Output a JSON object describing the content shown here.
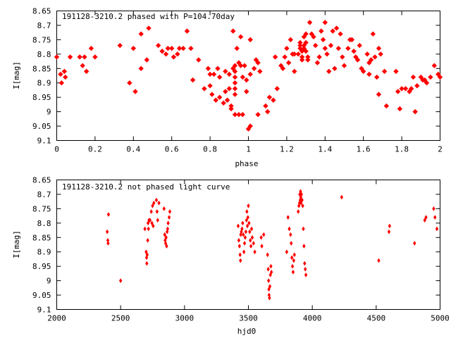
{
  "chart_data": [
    {
      "type": "scatter",
      "title": "191128-3210.2 phased with P=104.70day",
      "xlabel": "phase",
      "ylabel": "I[mag]",
      "xlim": [
        0,
        2
      ],
      "ylim": [
        9.1,
        8.65
      ],
      "y_inverted": true,
      "grid": false,
      "marker_color": "#ff0000",
      "xticks": [
        "0",
        "0.2",
        "0.4",
        "0.6",
        "0.8",
        "1",
        "1.2",
        "1.4",
        "1.6",
        "1.8",
        "2"
      ],
      "xtick_values": [
        0,
        0.2,
        0.4,
        0.6,
        0.8,
        1,
        1.2,
        1.4,
        1.6,
        1.8,
        2
      ],
      "yticks": [
        "8.65",
        "8.7",
        "8.75",
        "8.8",
        "8.85",
        "8.9",
        "8.95",
        "9",
        "9.05",
        "9.1"
      ],
      "ytick_values": [
        8.65,
        8.7,
        8.75,
        8.8,
        8.85,
        8.9,
        8.95,
        9.0,
        9.05,
        9.1
      ],
      "points": [
        [
          0.0,
          8.81
        ],
        [
          0.02,
          8.87
        ],
        [
          0.025,
          8.9
        ],
        [
          0.04,
          8.86
        ],
        [
          0.045,
          8.88
        ],
        [
          0.07,
          8.81
        ],
        [
          0.12,
          8.81
        ],
        [
          0.135,
          8.84
        ],
        [
          0.145,
          8.81
        ],
        [
          0.155,
          8.86
        ],
        [
          0.18,
          8.78
        ],
        [
          0.2,
          8.81
        ],
        [
          0.33,
          8.77
        ],
        [
          0.38,
          8.9
        ],
        [
          0.4,
          8.78
        ],
        [
          0.41,
          8.93
        ],
        [
          0.44,
          8.73
        ],
        [
          0.44,
          8.85
        ],
        [
          0.47,
          8.82
        ],
        [
          0.48,
          8.71
        ],
        [
          0.53,
          8.77
        ],
        [
          0.55,
          8.79
        ],
        [
          0.57,
          8.8
        ],
        [
          0.58,
          8.78
        ],
        [
          0.6,
          8.78
        ],
        [
          0.61,
          8.81
        ],
        [
          0.63,
          8.8
        ],
        [
          0.64,
          8.78
        ],
        [
          0.66,
          8.78
        ],
        [
          0.68,
          8.72
        ],
        [
          0.7,
          8.78
        ],
        [
          0.71,
          8.89
        ],
        [
          0.74,
          8.82
        ],
        [
          0.77,
          8.92
        ],
        [
          0.79,
          8.85
        ],
        [
          0.8,
          8.87
        ],
        [
          0.8,
          8.91
        ],
        [
          0.81,
          8.94
        ],
        [
          0.82,
          8.87
        ],
        [
          0.83,
          8.96
        ],
        [
          0.84,
          8.85
        ],
        [
          0.85,
          8.88
        ],
        [
          0.85,
          8.95
        ],
        [
          0.87,
          8.97
        ],
        [
          0.88,
          8.86
        ],
        [
          0.88,
          8.93
        ],
        [
          0.89,
          8.96
        ],
        [
          0.9,
          8.87
        ],
        [
          0.9,
          8.92
        ],
        [
          0.91,
          8.98
        ],
        [
          0.91,
          8.99
        ],
        [
          0.92,
          8.72
        ],
        [
          0.92,
          8.85
        ],
        [
          0.93,
          8.84
        ],
        [
          0.93,
          8.86
        ],
        [
          0.93,
          8.88
        ],
        [
          0.93,
          8.9
        ],
        [
          0.93,
          8.92
        ],
        [
          0.93,
          8.94
        ],
        [
          0.93,
          9.01
        ],
        [
          0.94,
          8.78
        ],
        [
          0.95,
          8.83
        ],
        [
          0.95,
          9.01
        ],
        [
          0.96,
          8.74
        ],
        [
          0.96,
          8.84
        ],
        [
          0.97,
          8.88
        ],
        [
          0.97,
          9.01
        ],
        [
          0.98,
          8.84
        ],
        [
          0.99,
          8.89
        ],
        [
          0.99,
          8.93
        ],
        [
          1.0,
          9.06
        ],
        [
          1.01,
          8.87
        ],
        [
          1.01,
          9.05
        ],
        [
          1.01,
          8.75
        ],
        [
          1.03,
          8.85
        ],
        [
          1.04,
          8.82
        ],
        [
          1.05,
          8.83
        ],
        [
          1.05,
          9.01
        ],
        [
          1.06,
          8.86
        ],
        [
          1.09,
          8.98
        ],
        [
          1.1,
          9.0
        ],
        [
          1.11,
          8.95
        ],
        [
          1.13,
          8.96
        ],
        [
          1.14,
          8.81
        ],
        [
          1.15,
          8.92
        ],
        [
          1.17,
          8.84
        ],
        [
          1.18,
          8.85
        ],
        [
          1.19,
          8.81
        ],
        [
          1.2,
          8.78
        ],
        [
          1.21,
          8.83
        ],
        [
          1.22,
          8.75
        ],
        [
          1.23,
          8.8
        ],
        [
          1.24,
          8.8
        ],
        [
          1.24,
          8.86
        ],
        [
          1.26,
          8.8
        ],
        [
          1.27,
          8.76
        ],
        [
          1.27,
          8.77
        ],
        [
          1.27,
          8.78
        ],
        [
          1.28,
          8.79
        ],
        [
          1.28,
          8.81
        ],
        [
          1.28,
          8.82
        ],
        [
          1.29,
          8.74
        ],
        [
          1.29,
          8.77
        ],
        [
          1.29,
          8.78
        ],
        [
          1.3,
          8.73
        ],
        [
          1.3,
          8.76
        ],
        [
          1.3,
          8.79
        ],
        [
          1.31,
          8.81
        ],
        [
          1.31,
          8.82
        ],
        [
          1.32,
          8.69
        ],
        [
          1.33,
          8.73
        ],
        [
          1.34,
          8.74
        ],
        [
          1.35,
          8.77
        ],
        [
          1.36,
          8.83
        ],
        [
          1.37,
          8.81
        ],
        [
          1.38,
          8.72
        ],
        [
          1.39,
          8.75
        ],
        [
          1.4,
          8.69
        ],
        [
          1.4,
          8.78
        ],
        [
          1.41,
          8.8
        ],
        [
          1.42,
          8.86
        ],
        [
          1.43,
          8.77
        ],
        [
          1.44,
          8.72
        ],
        [
          1.45,
          8.85
        ],
        [
          1.46,
          8.71
        ],
        [
          1.47,
          8.78
        ],
        [
          1.48,
          8.73
        ],
        [
          1.49,
          8.81
        ],
        [
          1.5,
          8.84
        ],
        [
          1.52,
          8.78
        ],
        [
          1.53,
          8.75
        ],
        [
          1.54,
          8.75
        ],
        [
          1.55,
          8.79
        ],
        [
          1.56,
          8.81
        ],
        [
          1.57,
          8.82
        ],
        [
          1.58,
          8.77
        ],
        [
          1.59,
          8.85
        ],
        [
          1.6,
          8.86
        ],
        [
          1.62,
          8.8
        ],
        [
          1.63,
          8.83
        ],
        [
          1.63,
          8.87
        ],
        [
          1.64,
          8.82
        ],
        [
          1.65,
          8.73
        ],
        [
          1.66,
          8.81
        ],
        [
          1.67,
          8.88
        ],
        [
          1.68,
          8.78
        ],
        [
          1.68,
          8.94
        ],
        [
          1.69,
          8.8
        ],
        [
          1.71,
          8.86
        ],
        [
          1.72,
          8.98
        ],
        [
          1.77,
          8.86
        ],
        [
          1.78,
          8.93
        ],
        [
          1.79,
          8.99
        ],
        [
          1.8,
          8.92
        ],
        [
          1.82,
          8.92
        ],
        [
          1.84,
          8.93
        ],
        [
          1.85,
          8.92
        ],
        [
          1.86,
          8.88
        ],
        [
          1.87,
          9.0
        ],
        [
          1.88,
          8.91
        ],
        [
          1.9,
          8.88
        ],
        [
          1.91,
          8.89
        ],
        [
          1.92,
          8.89
        ],
        [
          1.93,
          8.9
        ],
        [
          1.95,
          8.88
        ],
        [
          1.97,
          8.84
        ],
        [
          1.99,
          8.87
        ],
        [
          2.0,
          8.88
        ]
      ]
    },
    {
      "type": "scatter",
      "title": "191128-3210.2 not phased light curve",
      "xlabel": "hjd0",
      "ylabel": "I[mag]",
      "xlim": [
        2000,
        5000
      ],
      "ylim": [
        9.1,
        8.65
      ],
      "y_inverted": true,
      "grid": false,
      "marker_color": "#ff0000",
      "xticks": [
        "2000",
        "2500",
        "3000",
        "3500",
        "4000",
        "4500",
        "5000"
      ],
      "xtick_values": [
        2000,
        2500,
        3000,
        3500,
        4000,
        4500,
        5000
      ],
      "yticks": [
        "8.65",
        "8.7",
        "8.75",
        "8.8",
        "8.85",
        "8.9",
        "8.95",
        "9",
        "9.05",
        "9.1"
      ],
      "ytick_values": [
        8.65,
        8.7,
        8.75,
        8.8,
        8.85,
        8.9,
        8.95,
        9.0,
        9.05,
        9.1
      ],
      "points": [
        [
          2395,
          8.83
        ],
        [
          2400,
          8.86
        ],
        [
          2402,
          8.87
        ],
        [
          2405,
          8.77
        ],
        [
          2500,
          9.0
        ],
        [
          2690,
          8.82
        ],
        [
          2700,
          8.9
        ],
        [
          2703,
          8.92
        ],
        [
          2705,
          8.94
        ],
        [
          2708,
          8.91
        ],
        [
          2712,
          8.86
        ],
        [
          2715,
          8.8
        ],
        [
          2718,
          8.82
        ],
        [
          2722,
          8.79
        ],
        [
          2730,
          8.79
        ],
        [
          2740,
          8.76
        ],
        [
          2745,
          8.8
        ],
        [
          2750,
          8.74
        ],
        [
          2755,
          8.81
        ],
        [
          2760,
          8.73
        ],
        [
          2780,
          8.72
        ],
        [
          2785,
          8.76
        ],
        [
          2790,
          8.79
        ],
        [
          2800,
          8.73
        ],
        [
          2840,
          8.75
        ],
        [
          2845,
          8.84
        ],
        [
          2848,
          8.86
        ],
        [
          2852,
          8.87
        ],
        [
          2856,
          8.85
        ],
        [
          2860,
          8.88
        ],
        [
          2864,
          8.83
        ],
        [
          2868,
          8.82
        ],
        [
          2872,
          8.8
        ],
        [
          2880,
          8.78
        ],
        [
          2885,
          8.76
        ],
        [
          3420,
          8.81
        ],
        [
          3425,
          8.86
        ],
        [
          3430,
          8.88
        ],
        [
          3435,
          8.91
        ],
        [
          3438,
          8.93
        ],
        [
          3440,
          8.84
        ],
        [
          3445,
          8.83
        ],
        [
          3450,
          8.82
        ],
        [
          3455,
          8.8
        ],
        [
          3460,
          8.84
        ],
        [
          3465,
          8.9
        ],
        [
          3470,
          8.87
        ],
        [
          3475,
          8.85
        ],
        [
          3480,
          8.83
        ],
        [
          3485,
          8.79
        ],
        [
          3488,
          8.76
        ],
        [
          3492,
          8.81
        ],
        [
          3496,
          8.78
        ],
        [
          3500,
          8.74
        ],
        [
          3505,
          8.8
        ],
        [
          3510,
          8.83
        ],
        [
          3515,
          8.86
        ],
        [
          3520,
          8.88
        ],
        [
          3525,
          8.82
        ],
        [
          3530,
          8.85
        ],
        [
          3540,
          8.87
        ],
        [
          3550,
          8.9
        ],
        [
          3600,
          8.85
        ],
        [
          3605,
          8.88
        ],
        [
          3620,
          8.84
        ],
        [
          3650,
          8.91
        ],
        [
          3655,
          8.96
        ],
        [
          3658,
          9.0
        ],
        [
          3660,
          9.03
        ],
        [
          3662,
          9.05
        ],
        [
          3665,
          9.06
        ],
        [
          3668,
          9.02
        ],
        [
          3672,
          8.98
        ],
        [
          3676,
          8.95
        ],
        [
          3680,
          8.97
        ],
        [
          3800,
          8.9
        ],
        [
          3810,
          8.78
        ],
        [
          3820,
          8.82
        ],
        [
          3830,
          8.84
        ],
        [
          3835,
          8.87
        ],
        [
          3840,
          8.92
        ],
        [
          3845,
          8.95
        ],
        [
          3850,
          8.97
        ],
        [
          3855,
          8.93
        ],
        [
          3860,
          8.91
        ],
        [
          3890,
          8.76
        ],
        [
          3895,
          8.74
        ],
        [
          3900,
          8.73
        ],
        [
          3902,
          8.7
        ],
        [
          3905,
          8.72
        ],
        [
          3908,
          8.69
        ],
        [
          3910,
          8.71
        ],
        [
          3912,
          8.73
        ],
        [
          3915,
          8.7
        ],
        [
          3920,
          8.72
        ],
        [
          3925,
          8.74
        ],
        [
          3930,
          8.82
        ],
        [
          3935,
          8.88
        ],
        [
          3940,
          8.94
        ],
        [
          3945,
          8.96
        ],
        [
          3950,
          8.98
        ],
        [
          4230,
          8.71
        ],
        [
          4520,
          8.93
        ],
        [
          4600,
          8.83
        ],
        [
          4605,
          8.81
        ],
        [
          4800,
          8.87
        ],
        [
          4880,
          8.79
        ],
        [
          4890,
          8.78
        ],
        [
          4950,
          8.75
        ],
        [
          4960,
          8.78
        ],
        [
          4975,
          8.82
        ]
      ]
    }
  ]
}
